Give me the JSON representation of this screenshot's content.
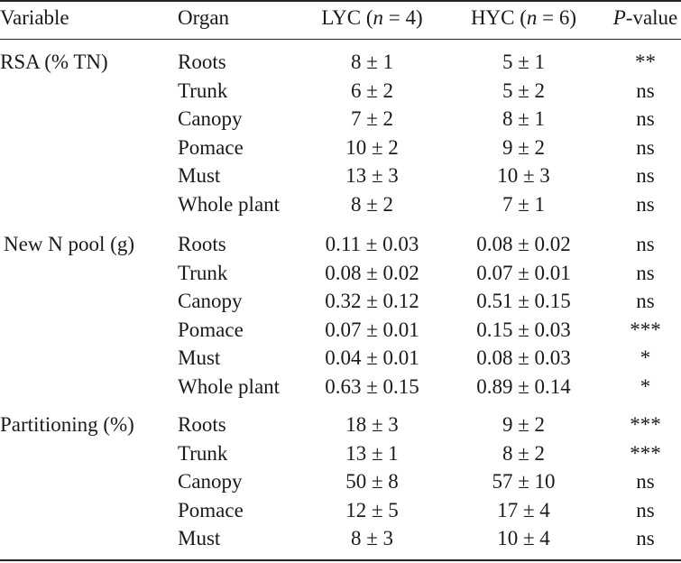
{
  "headers": {
    "variable": "Variable",
    "organ": "Organ",
    "lyc_prefix": "LYC (",
    "lyc_n": "n",
    "lyc_suffix": " = 4)",
    "hyc_prefix": "HYC (",
    "hyc_n": "n",
    "hyc_suffix": " = 6)",
    "p_italic": "P",
    "p_suffix": "-value"
  },
  "groups": [
    {
      "variable": "RSA (% TN)",
      "rows": [
        {
          "organ": "Roots",
          "lyc": "8 ± 1",
          "hyc": "5 ± 1",
          "p": "**"
        },
        {
          "organ": "Trunk",
          "lyc": "6 ± 2",
          "hyc": "5 ± 2",
          "p": "ns"
        },
        {
          "organ": "Canopy",
          "lyc": "7 ± 2",
          "hyc": "8 ± 1",
          "p": "ns"
        },
        {
          "organ": "Pomace",
          "lyc": "10 ± 2",
          "hyc": "9 ± 2",
          "p": "ns"
        },
        {
          "organ": "Must",
          "lyc": "13 ± 3",
          "hyc": "10 ± 3",
          "p": "ns"
        },
        {
          "organ": "Whole plant",
          "lyc": "8 ± 2",
          "hyc": "7 ± 1",
          "p": "ns"
        }
      ]
    },
    {
      "variable": "New N pool (g)",
      "rows": [
        {
          "organ": "Roots",
          "lyc": "0.11 ± 0.03",
          "hyc": "0.08 ± 0.02",
          "p": "ns"
        },
        {
          "organ": "Trunk",
          "lyc": "0.08 ± 0.02",
          "hyc": "0.07 ± 0.01",
          "p": "ns"
        },
        {
          "organ": "Canopy",
          "lyc": "0.32 ± 0.12",
          "hyc": "0.51 ± 0.15",
          "p": "ns"
        },
        {
          "organ": "Pomace",
          "lyc": "0.07 ± 0.01",
          "hyc": "0.15 ± 0.03",
          "p": "***"
        },
        {
          "organ": "Must",
          "lyc": "0.04 ± 0.01",
          "hyc": "0.08 ± 0.03",
          "p": "*"
        },
        {
          "organ": "Whole plant",
          "lyc": "0.63 ± 0.15",
          "hyc": "0.89 ± 0.14",
          "p": "*"
        }
      ]
    },
    {
      "variable": "Partitioning (%)",
      "rows": [
        {
          "organ": "Roots",
          "lyc": "18 ± 3",
          "hyc": "9 ± 2",
          "p": "***"
        },
        {
          "organ": "Trunk",
          "lyc": "13 ± 1",
          "hyc": "8 ± 2",
          "p": "***"
        },
        {
          "organ": "Canopy",
          "lyc": "50 ± 8",
          "hyc": "57 ± 10",
          "p": "ns"
        },
        {
          "organ": "Pomace",
          "lyc": "12 ± 5",
          "hyc": "17 ± 4",
          "p": "ns"
        },
        {
          "organ": "Must",
          "lyc": "8 ± 3",
          "hyc": "10 ± 4",
          "p": "ns"
        }
      ]
    }
  ]
}
